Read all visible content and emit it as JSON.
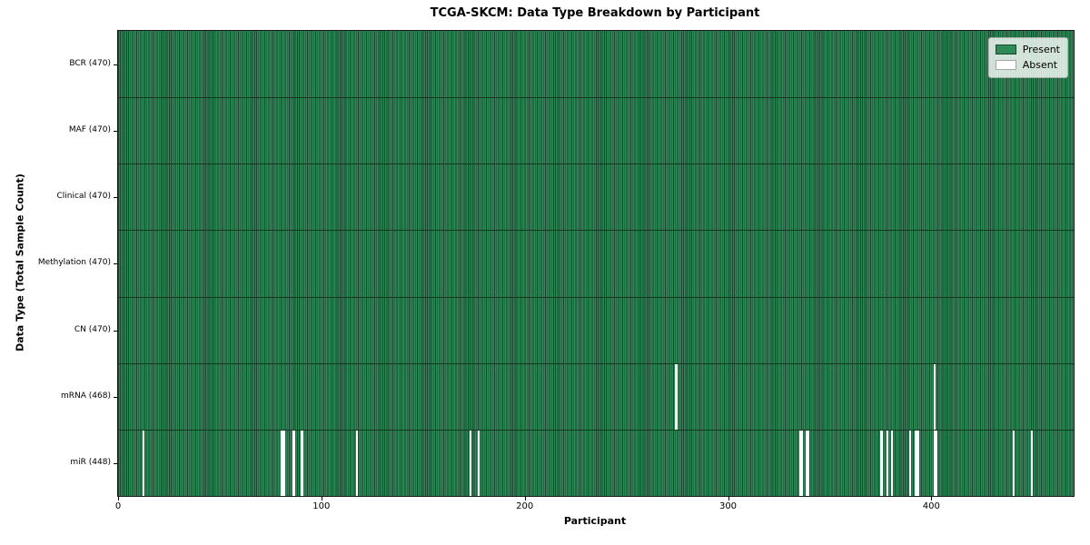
{
  "colors": {
    "present": "#2e8b57",
    "absent": "#ffffff",
    "cell_edge": "#17462c",
    "row_divider": "#14381f",
    "legend_bg": "#e9ece7",
    "spine": "#1a1a1a"
  },
  "legend": {
    "present_label": "Present",
    "absent_label": "Absent"
  },
  "chart_data": {
    "type": "heatmap",
    "title": "TCGA-SKCM: Data Type Breakdown by Participant",
    "xlabel": "Participant",
    "ylabel": "Data Type (Total Sample Count)",
    "n_participants": 470,
    "x_ticks": [
      0,
      100,
      200,
      300,
      400
    ],
    "legend": [
      "Present",
      "Absent"
    ],
    "legend_position": "upper right",
    "grid": false,
    "rows": [
      {
        "label": "BCR (470)",
        "total": 470,
        "absent": []
      },
      {
        "label": "MAF (470)",
        "total": 470,
        "absent": []
      },
      {
        "label": "Clinical (470)",
        "total": 470,
        "absent": []
      },
      {
        "label": "Methylation (470)",
        "total": 470,
        "absent": []
      },
      {
        "label": "CN (470)",
        "total": 470,
        "absent": []
      },
      {
        "label": "mRNA (468)",
        "total": 468,
        "absent": [
          274,
          401
        ]
      },
      {
        "label": "miR (448)",
        "total": 448,
        "absent": [
          12,
          80,
          81,
          86,
          90,
          117,
          173,
          177,
          335,
          336,
          338,
          339,
          375,
          378,
          380,
          389,
          392,
          393,
          401,
          402,
          440,
          449
        ]
      }
    ]
  }
}
